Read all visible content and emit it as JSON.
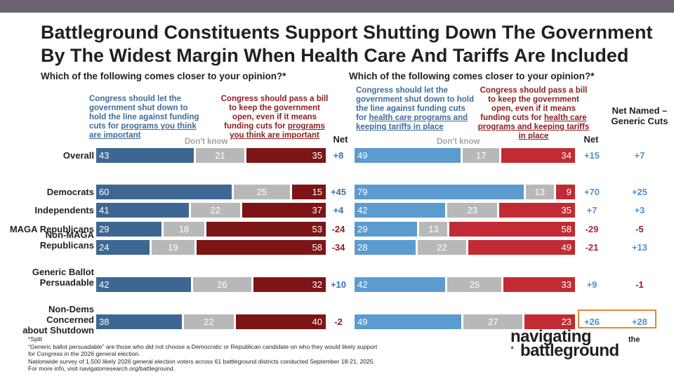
{
  "title_line1": "Battleground Constituents Support Shutting Down The Government",
  "title_line2": "By The Widest Margin When Health Care And Tariffs Are Included",
  "colors": {
    "left_shut": "#3d6792",
    "right_shut": "#5b9bd0",
    "dont_know": "#b8b8b8",
    "left_open": "#7d1416",
    "right_open": "#c22b33",
    "net_pos": "#3f6fa8",
    "net_neg": "#8c1d1d",
    "net_pos_right": "#4f93cf",
    "net_neg_right": "#b3262e"
  },
  "left_panel": {
    "question": "Which of the following comes closer to your opinion?*",
    "shut_label_pre": "Congress should let the government shut down to hold the line against funding cuts for ",
    "shut_label_u": "programs you think are important",
    "open_label_pre": "Congress should pass a bill to keep the government open, even if it means funding cuts for ",
    "open_label_u": "programs you think are important",
    "dont_know": "Don't know",
    "net_header": "Net"
  },
  "right_panel": {
    "question": "Which of the following comes closer to your opinion?*",
    "shut_label_pre": "Congress should let the government shut down to hold the line against funding cuts for ",
    "shut_label_u": "health care programs and keeping tariffs in place",
    "open_label_pre": "Congress should pass a bill to keep the government open, even if it means funding cuts for ",
    "open_label_u": "health care programs and keeping tariffs in place",
    "dont_know": "Don't know",
    "net_header": "Net",
    "net_named_header": "Net Named – Generic Cuts"
  },
  "chart_data": {
    "type": "bar",
    "stacked": true,
    "categories": [
      "Overall",
      "Democrats",
      "Independents",
      "MAGA Republicans",
      "Non-MAGA Republicans",
      "Generic Ballot Persuadable",
      "Non-Dems Concerned about Shutdown"
    ],
    "left_series": [
      {
        "name": "Shut down (programs you think are important)",
        "values": [
          43,
          60,
          41,
          29,
          24,
          42,
          38
        ]
      },
      {
        "name": "Don't know",
        "values": [
          21,
          25,
          22,
          18,
          19,
          26,
          22
        ]
      },
      {
        "name": "Keep open (programs you think are important)",
        "values": [
          35,
          15,
          37,
          53,
          58,
          32,
          40
        ]
      }
    ],
    "left_net": [
      "+8",
      "+45",
      "+4",
      "-24",
      "-34",
      "+10",
      "-2"
    ],
    "right_series": [
      {
        "name": "Shut down (health care programs and tariffs)",
        "values": [
          49,
          79,
          42,
          29,
          28,
          42,
          49
        ]
      },
      {
        "name": "Don't know",
        "values": [
          17,
          13,
          23,
          13,
          22,
          25,
          27
        ]
      },
      {
        "name": "Keep open (health care programs and tariffs)",
        "values": [
          34,
          9,
          35,
          58,
          49,
          33,
          23
        ]
      }
    ],
    "right_net": [
      "+15",
      "+70",
      "+7",
      "-29",
      "-21",
      "+9",
      "+26"
    ],
    "net_named_minus_generic": [
      "+7",
      "+25",
      "+3",
      "-5",
      "+13",
      "-1",
      "+28"
    ],
    "xlim": [
      0,
      100
    ]
  },
  "rows_display": [
    [
      "Overall"
    ],
    [
      "Democrats"
    ],
    [
      "Independents"
    ],
    [
      "MAGA Republicans"
    ],
    [
      "Non-MAGA",
      "Republicans"
    ],
    [
      "Generic Ballot",
      "Persuadable"
    ],
    [
      "Non-Dems Concerned",
      "about Shutdown"
    ]
  ],
  "footer": [
    "*Split",
    "“Generic ballot persuadable” are those who did not choose a Democratic or Republican candidate on who they would likely support",
    "for Congress in the 2026 general election.",
    "Nationwide survey of 1,500 likely 2026 general election voters across 61 battleground districts conducted September 18-21, 2025.",
    "For more info, visit navigatorresearch.org/battleground."
  ],
  "logo": {
    "line1": "navigating",
    "the": "the",
    "line2": "battleground",
    "star": "*"
  }
}
